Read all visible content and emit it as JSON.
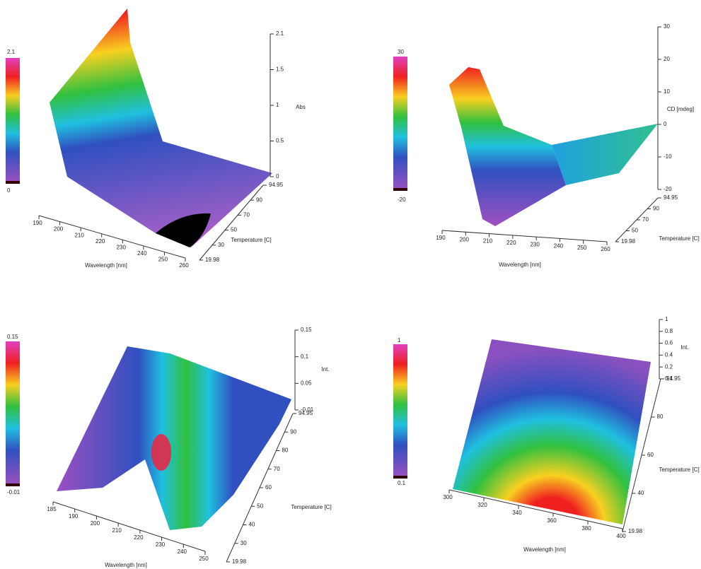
{
  "panels": [
    {
      "colorbar": {
        "max": 2.1,
        "min": 0
      },
      "z_axis": {
        "label": "Abs",
        "ticks": [
          2.1,
          1.5,
          1,
          0.5,
          0
        ]
      },
      "x_axis": {
        "label": "Wavelength [nm]",
        "ticks": [
          190,
          200,
          210,
          220,
          230,
          240,
          250,
          260
        ]
      },
      "y_axis": {
        "label": "Temperature [C]",
        "ticks": [
          94.95,
          90,
          70,
          50,
          30,
          19.98
        ]
      }
    },
    {
      "colorbar": {
        "max": 30,
        "min": -20
      },
      "z_axis": {
        "label": "CD [mdeg]",
        "ticks": [
          30,
          20,
          10,
          0,
          -10,
          -20
        ]
      },
      "x_axis": {
        "label": "Wavelength [nm]",
        "ticks": [
          190,
          200,
          210,
          220,
          230,
          240,
          250,
          260
        ]
      },
      "y_axis": {
        "label": "Temperature [C]",
        "ticks": [
          94.95,
          90,
          70,
          50,
          19.98
        ]
      }
    },
    {
      "colorbar": {
        "max": 0.15,
        "min": -0.01
      },
      "z_axis": {
        "label": "Int.",
        "ticks": [
          0.15,
          0.1,
          0.05,
          -0.01
        ]
      },
      "x_axis": {
        "label": "Wavelength [nm]",
        "ticks": [
          185,
          190,
          200,
          210,
          220,
          230,
          240,
          250
        ]
      },
      "y_axis": {
        "label": "Temperature [C]",
        "ticks": [
          94.95,
          90,
          80,
          70,
          60,
          50,
          40,
          30,
          19.98
        ]
      }
    },
    {
      "colorbar": {
        "max": 1,
        "min": 0.1
      },
      "z_axis": {
        "label": "Int.",
        "ticks": [
          1,
          0.8,
          0.6,
          0.4,
          0.2,
          0.1
        ]
      },
      "x_axis": {
        "label": "Wavelength [nm]",
        "ticks": [
          300,
          320,
          340,
          360,
          380,
          400
        ]
      },
      "y_axis": {
        "label": "Temperature [C]",
        "ticks": [
          94.95,
          80,
          60,
          40,
          19.98
        ]
      }
    }
  ]
}
